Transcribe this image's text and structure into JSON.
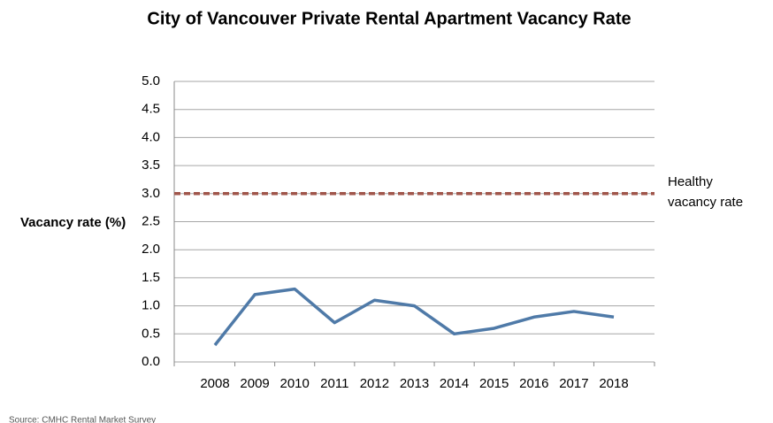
{
  "chart_data": {
    "type": "line",
    "title": "City of Vancouver Private Rental Apartment Vacancy Rate",
    "y_label": "Vacancy rate (%)",
    "source": "Source: CMHC Rental Market Survey",
    "categories": [
      "2008",
      "2009",
      "2010",
      "2011",
      "2012",
      "2013",
      "2014",
      "2015",
      "2016",
      "2017",
      "2018"
    ],
    "series": [
      {
        "name": "Vacancy rate",
        "color": "#4f7aa8",
        "values": [
          0.3,
          1.2,
          1.3,
          0.7,
          1.1,
          1.0,
          0.5,
          0.6,
          0.8,
          0.9,
          0.8
        ]
      }
    ],
    "reference_line": {
      "value": 3,
      "label_lines": [
        "Healthy",
        "vacancy rate"
      ],
      "color": "#a0564b"
    },
    "ylim": [
      0,
      5
    ],
    "yticks": [
      {
        "value": 0,
        "label": "0.0"
      },
      0.5,
      {
        "value": 1,
        "label": "1.0"
      },
      1.5,
      {
        "value": 2,
        "label": "2.0"
      },
      2.5,
      {
        "value": 3,
        "label": "3.0"
      },
      3.5,
      {
        "value": 4,
        "label": "4.0"
      },
      4.5,
      {
        "value": 5,
        "label": "5.0"
      }
    ],
    "grid": true
  }
}
